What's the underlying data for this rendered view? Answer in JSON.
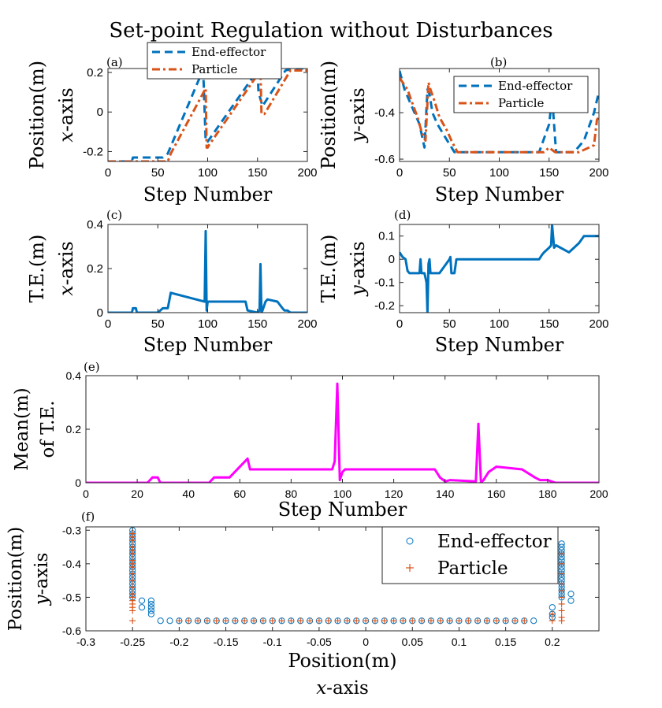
{
  "title": "Set-point Regulation without Disturbances",
  "colors": {
    "end_effector": "#0072BD",
    "particle": "#D95319",
    "mean_te": "#FF00FF",
    "te": "#0072BD",
    "axis": "#262626",
    "grid_box": "#ffffff"
  },
  "chart_data": [
    {
      "id": "a",
      "panel_label": "(a)",
      "type": "line",
      "ylabel_line1": "Position(m)",
      "ylabel_line2_var": "x",
      "ylabel_line2_rest": "-axis",
      "xlabel": "Step Number",
      "xlim": [
        0,
        200
      ],
      "ylim": [
        -0.25,
        0.22
      ],
      "xticks": [
        0,
        50,
        100,
        150,
        200
      ],
      "yticks": [
        -0.2,
        0,
        0.2
      ],
      "ytick_labels": [
        "-0.2",
        "0",
        "0.2"
      ],
      "legend": [
        "End-effector",
        "Particle"
      ],
      "legend_position": "top-center-outside",
      "series": [
        {
          "name": "End-effector",
          "style": "dashed",
          "x": [
            0,
            24,
            25,
            55,
            60,
            95,
            96,
            98,
            100,
            150,
            151,
            155,
            178,
            185,
            200
          ],
          "y": [
            -0.25,
            -0.25,
            -0.23,
            -0.23,
            -0.21,
            0.21,
            0.15,
            -0.15,
            -0.15,
            0.21,
            0.1,
            0.03,
            0.21,
            0.22,
            0.22
          ]
        },
        {
          "name": "Particle",
          "style": "dashdot",
          "x": [
            0,
            60,
            63,
            97,
            98,
            99,
            100,
            101,
            153,
            154,
            155,
            157,
            183,
            185,
            200
          ],
          "y": [
            -0.25,
            -0.25,
            -0.21,
            0.11,
            0.12,
            -0.18,
            -0.18,
            -0.17,
            0.21,
            -0.01,
            -0.01,
            -0.01,
            0.21,
            0.21,
            0.21
          ]
        }
      ]
    },
    {
      "id": "b",
      "panel_label": "(b)",
      "type": "line",
      "ylabel_line1": "Position(m)",
      "ylabel_line2_var": "y",
      "ylabel_line2_rest": "-axis",
      "xlabel": "Step Number",
      "xlim": [
        0,
        200
      ],
      "ylim": [
        -0.61,
        -0.21
      ],
      "xticks": [
        0,
        50,
        100,
        150,
        200
      ],
      "yticks": [
        -0.6,
        -0.4
      ],
      "ytick_labels": [
        "-0.6",
        "-0.4"
      ],
      "legend": [
        "End-effector",
        "Particle"
      ],
      "legend_position": "top-right",
      "series": [
        {
          "name": "End-effector",
          "style": "dashed",
          "x": [
            0,
            5,
            10,
            15,
            20,
            25,
            28,
            30,
            33,
            38,
            45,
            55,
            140,
            150,
            153,
            157,
            175,
            185,
            195,
            200
          ],
          "y": [
            -0.22,
            -0.3,
            -0.35,
            -0.4,
            -0.45,
            -0.55,
            -0.3,
            -0.32,
            -0.4,
            -0.45,
            -0.5,
            -0.57,
            -0.57,
            -0.45,
            -0.33,
            -0.57,
            -0.57,
            -0.52,
            -0.4,
            -0.31
          ]
        },
        {
          "name": "Particle",
          "style": "dashdot",
          "x": [
            0,
            8,
            12,
            18,
            22,
            26,
            29,
            31,
            35,
            40,
            48,
            52,
            58,
            145,
            150,
            153,
            156,
            160,
            180,
            190,
            195,
            198,
            200
          ],
          "y": [
            -0.25,
            -0.3,
            -0.35,
            -0.42,
            -0.48,
            -0.52,
            -0.27,
            -0.3,
            -0.35,
            -0.42,
            -0.48,
            -0.52,
            -0.57,
            -0.57,
            -0.55,
            -0.56,
            -0.57,
            -0.57,
            -0.57,
            -0.55,
            -0.54,
            -0.43,
            -0.42
          ]
        }
      ]
    },
    {
      "id": "c",
      "panel_label": "(c)",
      "type": "line",
      "ylabel_line1": "T.E.(m)",
      "ylabel_line2_var": "x",
      "ylabel_line2_rest": "-axis",
      "xlabel": "Step Number",
      "xlim": [
        0,
        200
      ],
      "ylim": [
        0,
        0.4
      ],
      "xticks": [
        0,
        50,
        100,
        150,
        200
      ],
      "yticks": [
        0,
        0.2,
        0.4
      ],
      "ytick_labels": [
        "0",
        "0.2",
        "0.4"
      ],
      "series": [
        {
          "name": "T.E.",
          "style": "solid",
          "x": [
            0,
            24,
            25,
            28,
            29,
            50,
            55,
            60,
            63,
            97,
            98,
            99,
            100,
            101,
            138,
            140,
            150,
            152,
            153,
            154,
            155,
            158,
            160,
            170,
            175,
            177,
            180,
            183,
            200
          ],
          "y": [
            0,
            0,
            0.02,
            0.02,
            0,
            0,
            0.02,
            0.02,
            0.09,
            0.05,
            0.37,
            0.01,
            0.05,
            0.05,
            0.05,
            0.01,
            0,
            0.01,
            0.22,
            0,
            0.01,
            0.05,
            0.06,
            0.05,
            0.02,
            0.01,
            0.01,
            0,
            0
          ]
        }
      ]
    },
    {
      "id": "d",
      "panel_label": "(d)",
      "type": "line",
      "ylabel_line1": "T.E.(m)",
      "ylabel_line2_var": "y",
      "ylabel_line2_rest": "-axis",
      "xlabel": "Step Number",
      "xlim": [
        0,
        200
      ],
      "ylim": [
        -0.23,
        0.15
      ],
      "xticks": [
        0,
        50,
        100,
        150,
        200
      ],
      "yticks": [
        -0.2,
        -0.1,
        0,
        0.1
      ],
      "ytick_labels": [
        "-0.2",
        "-0.1",
        "0",
        "0.1"
      ],
      "series": [
        {
          "name": "T.E.",
          "style": "solid",
          "x": [
            0,
            3,
            6,
            8,
            10,
            20,
            21,
            22,
            25,
            27,
            28,
            29,
            30,
            31,
            32,
            35,
            40,
            50,
            51,
            52,
            55,
            57,
            60,
            140,
            143,
            145,
            150,
            152,
            153,
            155,
            157,
            170,
            175,
            180,
            185,
            190,
            198,
            200
          ],
          "y": [
            0.03,
            0.01,
            0,
            -0.05,
            -0.06,
            -0.06,
            0,
            -0.06,
            -0.06,
            -0.1,
            -0.23,
            -0.02,
            0,
            -0.06,
            -0.06,
            -0.06,
            -0.06,
            0,
            0.01,
            -0.06,
            -0.06,
            0,
            0,
            0,
            0.02,
            0.03,
            0.05,
            0.06,
            0.15,
            0.05,
            0.06,
            0.03,
            0.05,
            0.07,
            0.1,
            0.1,
            0.1,
            0.1
          ]
        }
      ]
    },
    {
      "id": "e",
      "panel_label": "(e)",
      "type": "line",
      "ylabel_line1": "Mean(m)",
      "ylabel_line2": "of T.E.",
      "xlabel": "Step Number",
      "xlim": [
        0,
        200
      ],
      "ylim": [
        0,
        0.4
      ],
      "xticks": [
        0,
        20,
        40,
        60,
        80,
        100,
        120,
        140,
        160,
        180,
        200
      ],
      "yticks": [
        0,
        0.2,
        0.4
      ],
      "ytick_labels": [
        "0",
        "0.2",
        "0.4"
      ],
      "series": [
        {
          "name": "Mean of T.E.",
          "style": "solid-markers",
          "x": [
            0,
            24,
            26,
            28,
            29,
            48,
            50,
            56,
            63,
            64,
            96,
            97,
            98,
            99,
            100,
            101,
            136,
            138,
            140,
            142,
            152,
            153,
            154,
            155,
            157,
            160,
            170,
            175,
            177,
            180,
            183,
            200
          ],
          "y": [
            0,
            0,
            0.02,
            0.02,
            0,
            0,
            0.02,
            0.02,
            0.09,
            0.05,
            0.05,
            0.08,
            0.37,
            0.01,
            0.04,
            0.05,
            0.05,
            0.02,
            0.005,
            0.01,
            0.005,
            0.22,
            0,
            0.01,
            0.04,
            0.06,
            0.05,
            0.02,
            0.01,
            0.01,
            0,
            0
          ]
        }
      ]
    },
    {
      "id": "f",
      "panel_label": "(f)",
      "type": "scatter",
      "ylabel_line1": "Position(m)",
      "ylabel_line2_var": "y",
      "ylabel_line2_rest": "-axis",
      "xlabel": "Position(m)",
      "xlabel2_var": "x",
      "xlabel2_rest": "-axis",
      "xlim": [
        -0.3,
        0.25
      ],
      "ylim": [
        -0.6,
        -0.29
      ],
      "xticks": [
        -0.3,
        -0.25,
        -0.2,
        -0.15,
        -0.1,
        -0.05,
        0,
        0.05,
        0.1,
        0.15,
        0.2
      ],
      "xtick_labels": [
        "-0.3",
        "-0.25",
        "-0.2",
        "-0.15",
        "-0.1",
        "-0.05",
        "0",
        "0.05",
        "0.1",
        "0.15",
        "0.2"
      ],
      "yticks": [
        -0.6,
        -0.5,
        -0.4,
        -0.3
      ],
      "ytick_labels": [
        "-0.6",
        "-0.5",
        "-0.4",
        "-0.3"
      ],
      "legend": [
        "End-effector",
        "Particle"
      ],
      "legend_position": "top-right",
      "series": [
        {
          "name": "End-effector",
          "marker": "circle",
          "x": [
            -0.25,
            -0.25,
            -0.25,
            -0.25,
            -0.25,
            -0.25,
            -0.25,
            -0.25,
            -0.25,
            -0.25,
            -0.25,
            -0.25,
            -0.25,
            -0.25,
            -0.25,
            -0.25,
            -0.25,
            -0.25,
            -0.25,
            -0.25,
            -0.25,
            -0.24,
            -0.24,
            -0.23,
            -0.23,
            -0.23,
            -0.23,
            -0.23,
            -0.22,
            -0.21,
            -0.2,
            -0.19,
            -0.18,
            -0.17,
            -0.16,
            -0.15,
            -0.14,
            -0.13,
            -0.12,
            -0.11,
            -0.1,
            -0.09,
            -0.08,
            -0.07,
            -0.06,
            -0.05,
            -0.04,
            -0.03,
            -0.02,
            -0.01,
            0,
            0.01,
            0.02,
            0.03,
            0.04,
            0.05,
            0.06,
            0.07,
            0.08,
            0.09,
            0.1,
            0.11,
            0.12,
            0.13,
            0.14,
            0.15,
            0.16,
            0.17,
            0.18,
            0.2,
            0.2,
            0.2,
            0.21,
            0.21,
            0.21,
            0.21,
            0.21,
            0.21,
            0.21,
            0.21,
            0.21,
            0.21,
            0.21,
            0.21,
            0.21,
            0.21,
            0.21,
            0.21,
            0.21,
            0.22,
            0.22
          ],
          "y": [
            -0.3,
            -0.31,
            -0.32,
            -0.33,
            -0.34,
            -0.35,
            -0.36,
            -0.37,
            -0.38,
            -0.39,
            -0.4,
            -0.41,
            -0.42,
            -0.43,
            -0.44,
            -0.45,
            -0.46,
            -0.47,
            -0.48,
            -0.49,
            -0.5,
            -0.51,
            -0.53,
            -0.51,
            -0.52,
            -0.53,
            -0.54,
            -0.55,
            -0.57,
            -0.57,
            -0.57,
            -0.57,
            -0.57,
            -0.57,
            -0.57,
            -0.57,
            -0.57,
            -0.57,
            -0.57,
            -0.57,
            -0.57,
            -0.57,
            -0.57,
            -0.57,
            -0.57,
            -0.57,
            -0.57,
            -0.57,
            -0.57,
            -0.57,
            -0.57,
            -0.57,
            -0.57,
            -0.57,
            -0.57,
            -0.57,
            -0.57,
            -0.57,
            -0.57,
            -0.57,
            -0.57,
            -0.57,
            -0.57,
            -0.57,
            -0.57,
            -0.57,
            -0.57,
            -0.57,
            -0.57,
            -0.53,
            -0.55,
            -0.56,
            -0.34,
            -0.35,
            -0.36,
            -0.37,
            -0.38,
            -0.39,
            -0.4,
            -0.41,
            -0.42,
            -0.43,
            -0.44,
            -0.45,
            -0.46,
            -0.47,
            -0.48,
            -0.49,
            -0.5,
            -0.49,
            -0.51
          ]
        },
        {
          "name": "Particle",
          "marker": "plus",
          "x": [
            -0.25,
            -0.25,
            -0.25,
            -0.25,
            -0.25,
            -0.25,
            -0.25,
            -0.25,
            -0.25,
            -0.25,
            -0.25,
            -0.25,
            -0.25,
            -0.25,
            -0.25,
            -0.25,
            -0.25,
            -0.25,
            -0.25,
            -0.2,
            -0.19,
            -0.18,
            -0.17,
            -0.16,
            -0.15,
            -0.14,
            -0.13,
            -0.12,
            -0.11,
            -0.1,
            -0.09,
            -0.08,
            -0.07,
            -0.06,
            -0.05,
            -0.04,
            -0.03,
            -0.02,
            -0.01,
            0,
            0.01,
            0.02,
            0.03,
            0.04,
            0.05,
            0.06,
            0.07,
            0.08,
            0.09,
            0.1,
            0.11,
            0.12,
            0.13,
            0.14,
            0.15,
            0.16,
            0.17,
            0.2,
            0.2,
            0.21,
            0.21,
            0.21,
            0.21,
            0.21,
            0.21,
            0.21,
            0.21,
            0.21,
            0.21
          ],
          "y": [
            -0.31,
            -0.33,
            -0.35,
            -0.37,
            -0.39,
            -0.41,
            -0.43,
            -0.45,
            -0.47,
            -0.49,
            -0.5,
            -0.51,
            -0.52,
            -0.53,
            -0.54,
            -0.57,
            -0.32,
            -0.36,
            -0.4,
            -0.57,
            -0.57,
            -0.57,
            -0.57,
            -0.57,
            -0.57,
            -0.57,
            -0.57,
            -0.57,
            -0.57,
            -0.57,
            -0.57,
            -0.57,
            -0.57,
            -0.57,
            -0.57,
            -0.57,
            -0.57,
            -0.57,
            -0.57,
            -0.57,
            -0.57,
            -0.57,
            -0.57,
            -0.57,
            -0.57,
            -0.57,
            -0.57,
            -0.57,
            -0.57,
            -0.57,
            -0.57,
            -0.57,
            -0.57,
            -0.57,
            -0.57,
            -0.57,
            -0.57,
            -0.55,
            -0.57,
            -0.37,
            -0.4,
            -0.43,
            -0.46,
            -0.48,
            -0.5,
            -0.52,
            -0.54,
            -0.56,
            -0.57
          ]
        }
      ]
    }
  ]
}
